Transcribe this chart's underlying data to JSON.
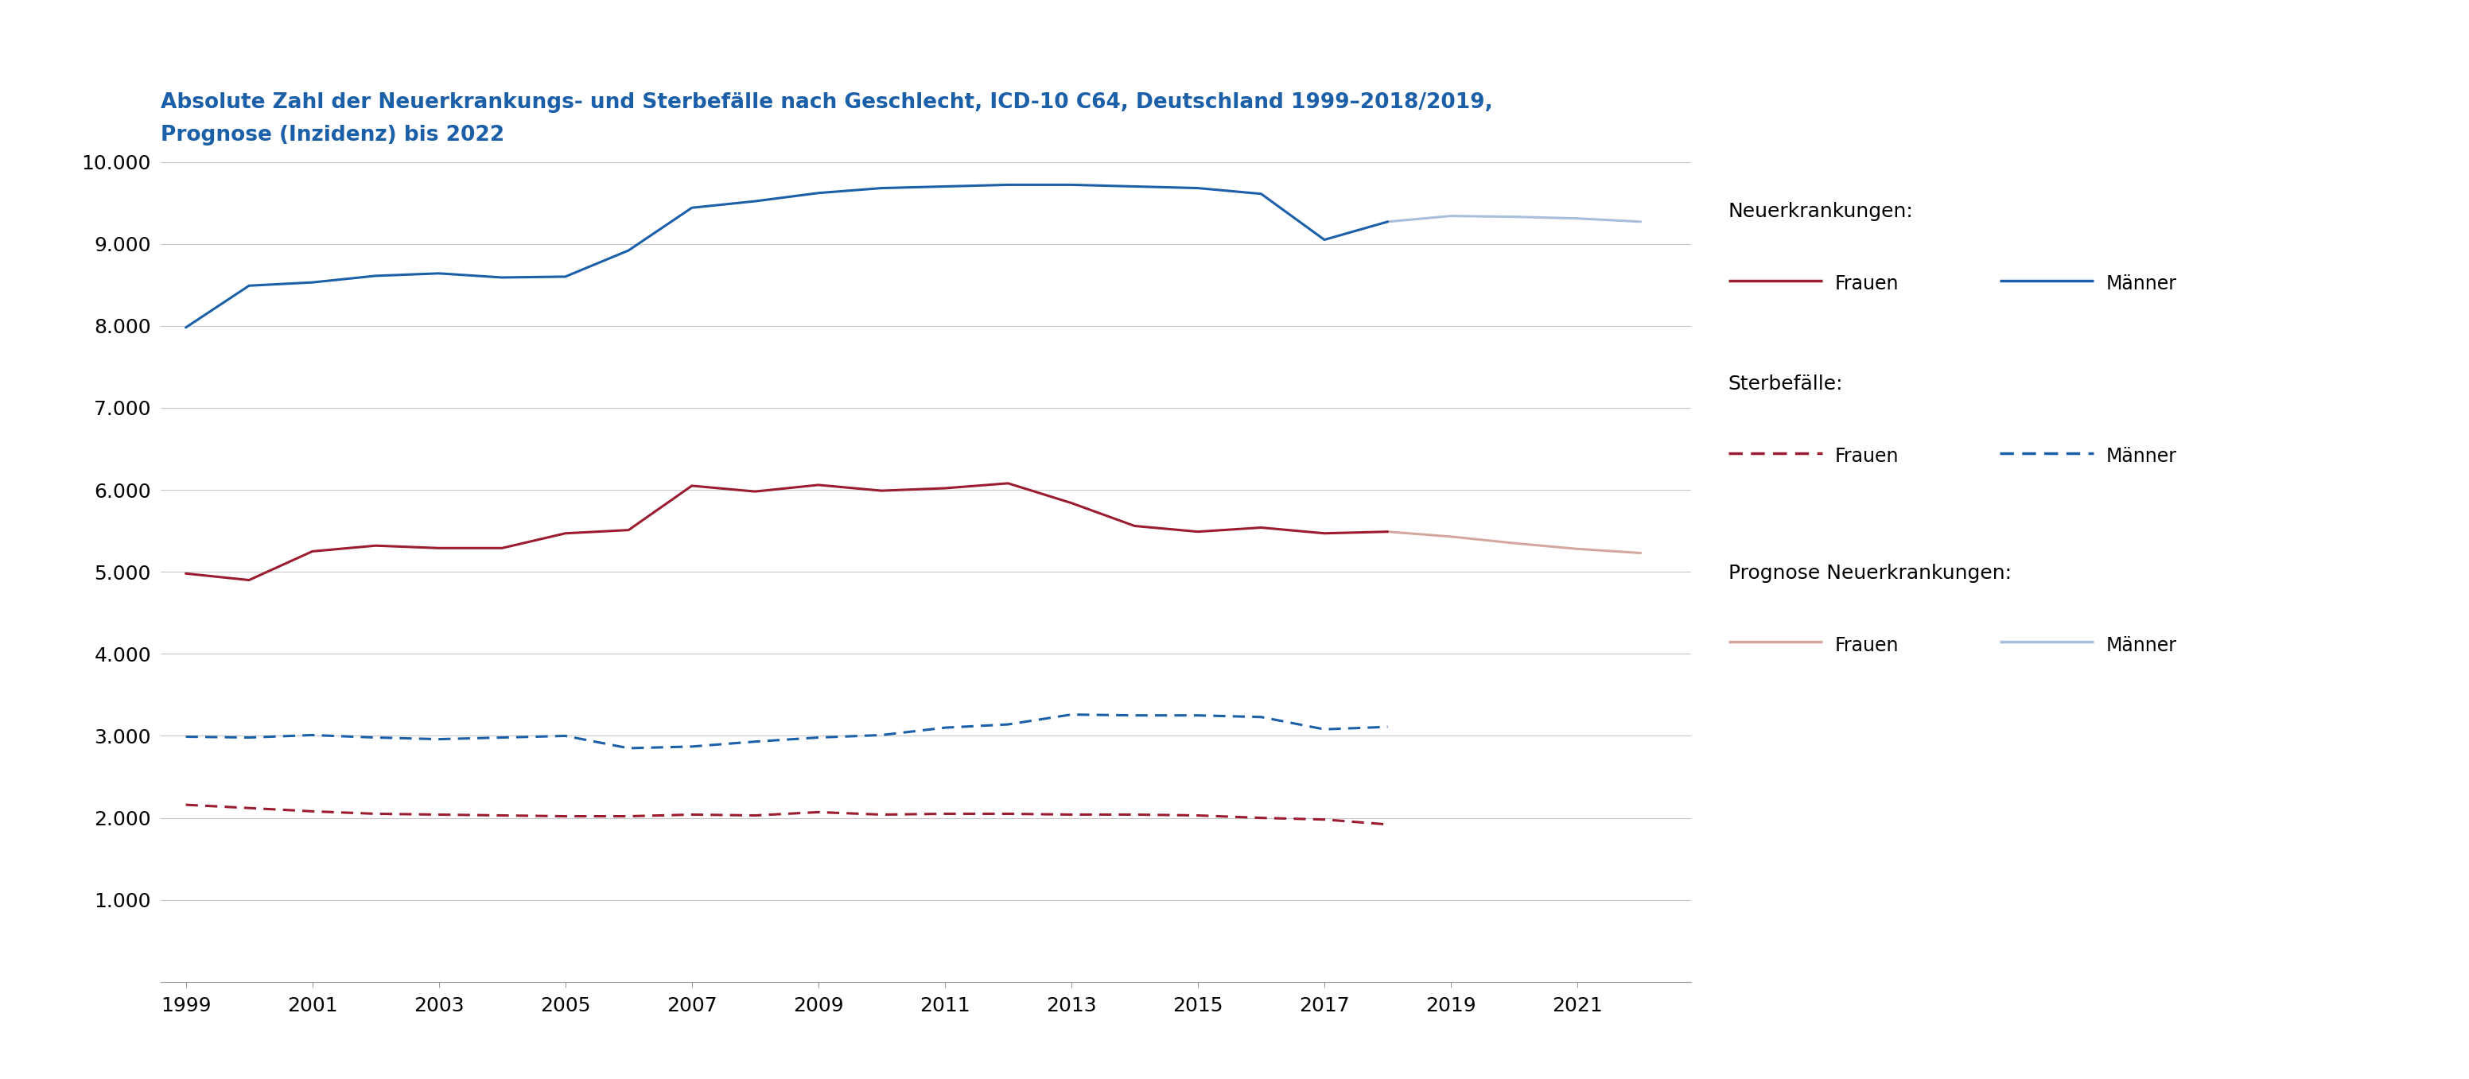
{
  "title_line1": "Absolute Zahl der Neuerkrankungs- und Sterbefälle nach Geschlecht, ICD-10 C64, Deutschland 1999–2018/2019,",
  "title_line2": "Prognose (Inzidenz) bis 2022",
  "title_color": "#1a5fa8",
  "background_color": "#ffffff",
  "years_actual": [
    1999,
    2000,
    2001,
    2002,
    2003,
    2004,
    2005,
    2006,
    2007,
    2008,
    2009,
    2010,
    2011,
    2012,
    2013,
    2014,
    2015,
    2016,
    2017,
    2018
  ],
  "years_prognose": [
    2018,
    2019,
    2020,
    2021,
    2022
  ],
  "neuerkrankungen_frauen": [
    4980,
    4900,
    5250,
    5320,
    5290,
    5290,
    5470,
    5510,
    6050,
    5980,
    6060,
    5990,
    6020,
    6080,
    5840,
    5560,
    5490,
    5540,
    5470,
    5490
  ],
  "neuerkrankungen_maenner": [
    7980,
    8490,
    8530,
    8610,
    8640,
    8590,
    8600,
    8920,
    9440,
    9520,
    9620,
    9680,
    9700,
    9720,
    9720,
    9700,
    9680,
    9610,
    9050,
    9270
  ],
  "sterbefaelle_frauen": [
    2160,
    2120,
    2080,
    2050,
    2040,
    2030,
    2020,
    2020,
    2040,
    2030,
    2070,
    2040,
    2050,
    2050,
    2040,
    2040,
    2030,
    2000,
    1980,
    1920
  ],
  "sterbefaelle_maenner": [
    2990,
    2980,
    3010,
    2980,
    2960,
    2980,
    3000,
    2850,
    2870,
    2930,
    2980,
    3010,
    3100,
    3140,
    3260,
    3250,
    3250,
    3230,
    3080,
    3110
  ],
  "prognose_frauen": [
    5490,
    5430,
    5350,
    5280,
    5230
  ],
  "prognose_maenner": [
    9270,
    9340,
    9330,
    9310,
    9270
  ],
  "color_frauen": "#9b1b30",
  "color_maenner": "#1a5fa8",
  "color_prognose_frauen": "#d4a8a0",
  "color_prognose_maenner": "#a8bedd",
  "ylim": [
    0,
    10000
  ],
  "yticks": [
    1000,
    2000,
    3000,
    4000,
    5000,
    6000,
    7000,
    8000,
    9000,
    10000
  ],
  "ytick_labels": [
    "1.000",
    "2.000",
    "3.000",
    "4.000",
    "5.000",
    "6.000",
    "7.000",
    "8.000",
    "9.000",
    "10.000"
  ],
  "xticks": [
    1999,
    2001,
    2003,
    2005,
    2007,
    2009,
    2011,
    2013,
    2015,
    2017,
    2019,
    2021
  ],
  "grid_color": "#c8c8c8",
  "linewidth": 2.2,
  "linewidth_prognose": 2.2
}
